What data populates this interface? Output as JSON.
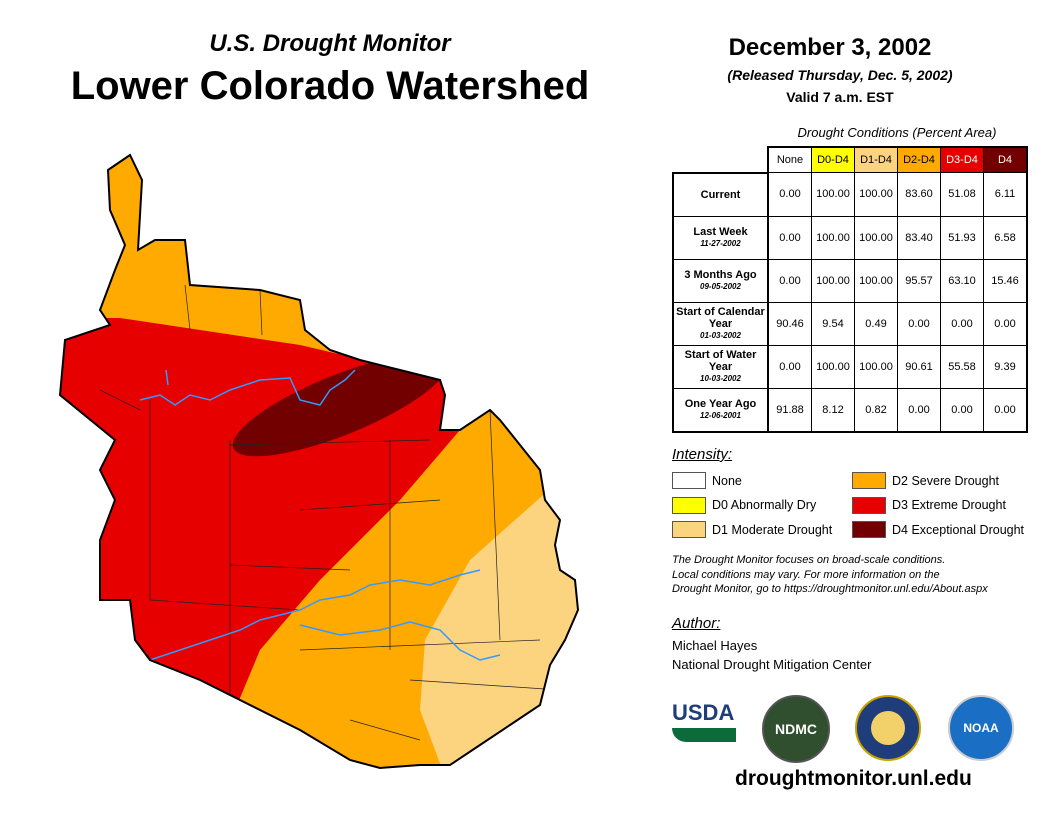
{
  "header": {
    "subtitle": "U.S. Drought Monitor",
    "title": "Lower Colorado Watershed",
    "date": "December 3, 2002",
    "released": "(Released Thursday, Dec. 5, 2002)",
    "valid": "Valid 7 a.m. EST"
  },
  "table": {
    "caption": "Drought Conditions (Percent Area)",
    "columns": [
      {
        "label": "None",
        "color": "#ffffff",
        "text": "#000"
      },
      {
        "label": "D0-D4",
        "color": "#ffff00",
        "text": "#000"
      },
      {
        "label": "D1-D4",
        "color": "#fcd37f",
        "text": "#000"
      },
      {
        "label": "D2-D4",
        "color": "#ffaa00",
        "text": "#000"
      },
      {
        "label": "D3-D4",
        "color": "#e60000",
        "text": "#fff"
      },
      {
        "label": "D4",
        "color": "#730000",
        "text": "#fff"
      }
    ],
    "rows": [
      {
        "label": "Current",
        "date": "",
        "values": [
          "0.00",
          "100.00",
          "100.00",
          "83.60",
          "51.08",
          "6.11"
        ]
      },
      {
        "label": "Last Week",
        "date": "11-27-2002",
        "values": [
          "0.00",
          "100.00",
          "100.00",
          "83.40",
          "51.93",
          "6.58"
        ]
      },
      {
        "label": "3 Months Ago",
        "date": "09-05-2002",
        "values": [
          "0.00",
          "100.00",
          "100.00",
          "95.57",
          "63.10",
          "15.46"
        ]
      },
      {
        "label": "Start of Calendar Year",
        "date": "01-03-2002",
        "values": [
          "90.46",
          "9.54",
          "0.49",
          "0.00",
          "0.00",
          "0.00"
        ]
      },
      {
        "label": "Start of Water Year",
        "date": "10-03-2002",
        "values": [
          "0.00",
          "100.00",
          "100.00",
          "90.61",
          "55.58",
          "9.39"
        ]
      },
      {
        "label": "One Year Ago",
        "date": "12-06-2001",
        "values": [
          "91.88",
          "8.12",
          "0.82",
          "0.00",
          "0.00",
          "0.00"
        ]
      }
    ]
  },
  "legend": {
    "title": "Intensity:",
    "items": [
      {
        "label": "None",
        "color": "#ffffff"
      },
      {
        "label": "D0 Abnormally Dry",
        "color": "#ffff00"
      },
      {
        "label": "D1 Moderate Drought",
        "color": "#fcd37f"
      },
      {
        "label": "D2 Severe Drought",
        "color": "#ffaa00"
      },
      {
        "label": "D3 Extreme Drought",
        "color": "#e60000"
      },
      {
        "label": "D4 Exceptional Drought",
        "color": "#730000"
      }
    ]
  },
  "note": [
    "The Drought Monitor focuses on broad-scale conditions.",
    "Local conditions may vary. For more information on the",
    "Drought Monitor, go to https://droughtmonitor.unl.edu/About.aspx"
  ],
  "author": {
    "label": "Author:",
    "name": "Michael Hayes",
    "org": "National Drought Mitigation Center"
  },
  "logos": {
    "usda": "USDA",
    "ndmc": "NDMC",
    "noaa": "NOAA"
  },
  "footer_url": "droughtmonitor.unl.edu"
}
